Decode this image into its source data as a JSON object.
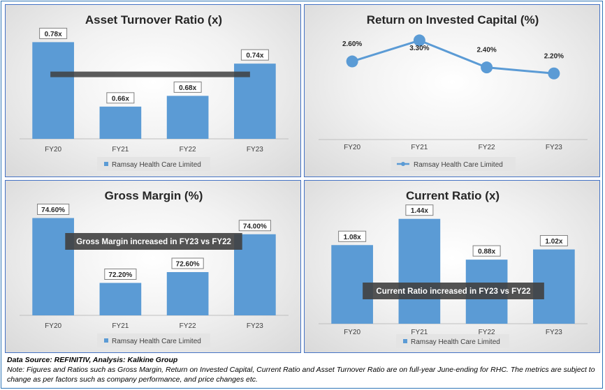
{
  "colors": {
    "bar": "#5b9bd5",
    "label_border": "#7f7f7f",
    "overlay": "#404040"
  },
  "panels": [
    {
      "id": "asset-turnover",
      "title": "Asset Turnover Ratio (x)",
      "legend": "Ramsay Health Care Limited",
      "legend_icon": "bar-swatch-icon"
    },
    {
      "id": "roic",
      "title": "Return on Invested Capital (%)",
      "legend": "Ramsay Health Care Limited",
      "legend_icon": "line-marker-icon"
    },
    {
      "id": "gross-margin",
      "title": "Gross Margin (%)",
      "legend": "Ramsay Health Care Limited",
      "legend_icon": "bar-swatch-icon",
      "annotation": "Gross Margin increased in FY23 vs FY22"
    },
    {
      "id": "current-ratio",
      "title": "Current Ratio (x)",
      "legend": "Ramsay Health Care Limited",
      "legend_icon": "bar-swatch-icon",
      "annotation": "Current Ratio increased in FY23 vs FY22"
    }
  ],
  "chart_data": [
    {
      "type": "bar",
      "title": "Asset Turnover Ratio (x)",
      "categories": [
        "FY20",
        "FY21",
        "FY22",
        "FY23"
      ],
      "series": [
        {
          "name": "Ramsay Health Care Limited",
          "values": [
            0.78,
            0.66,
            0.68,
            0.74
          ]
        }
      ],
      "data_labels": [
        "0.78x",
        "0.66x",
        "0.68x",
        "0.74x"
      ],
      "ylim": [
        0.6,
        0.8
      ],
      "trend_line": {
        "y": 0.72
      },
      "legend_position": "bottom",
      "grid": false
    },
    {
      "type": "line",
      "title": "Return on Invested Capital (%)",
      "categories": [
        "FY20",
        "FY21",
        "FY22",
        "FY23"
      ],
      "series": [
        {
          "name": "Ramsay Health Care Limited",
          "values": [
            2.6,
            3.3,
            2.4,
            2.2
          ]
        }
      ],
      "data_labels": [
        "2.60%",
        "3.30%",
        "2.40%",
        "2.20%"
      ],
      "ylim": [
        0,
        3.6
      ],
      "legend_position": "bottom",
      "grid": false
    },
    {
      "type": "bar",
      "title": "Gross Margin (%)",
      "categories": [
        "FY20",
        "FY21",
        "FY22",
        "FY23"
      ],
      "series": [
        {
          "name": "Ramsay Health Care Limited",
          "values": [
            74.6,
            72.2,
            72.6,
            74.0
          ]
        }
      ],
      "data_labels": [
        "74.60%",
        "72.20%",
        "72.60%",
        "74.00%"
      ],
      "ylim": [
        71,
        75
      ],
      "annotation": "Gross Margin increased in FY23 vs FY22",
      "legend_position": "bottom",
      "grid": false
    },
    {
      "type": "bar",
      "title": "Current Ratio (x)",
      "categories": [
        "FY20",
        "FY21",
        "FY22",
        "FY23"
      ],
      "series": [
        {
          "name": "Ramsay Health Care Limited",
          "values": [
            1.08,
            1.44,
            0.88,
            1.02
          ]
        }
      ],
      "data_labels": [
        "1.08x",
        "1.44x",
        "0.88x",
        "1.02x"
      ],
      "ylim": [
        0,
        1.6
      ],
      "annotation": "Current Ratio increased in FY23 vs FY22",
      "legend_position": "bottom",
      "grid": false
    }
  ],
  "footer": {
    "source": "Data Source: REFINITIV, Analysis: Kalkine Group",
    "note": "Note: Figures and Ratios such as Gross Margin, Return on Invested Capital, Current Ratio and Asset Turnover Ratio are on full-year June-ending for RHC. The metrics are subject to change as per factors such as company performance, and price changes etc."
  }
}
